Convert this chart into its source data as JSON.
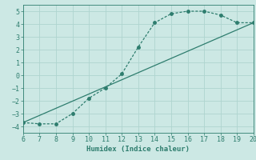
{
  "curve_x": [
    6,
    7,
    8,
    9,
    10,
    11,
    12,
    13,
    14,
    15,
    16,
    17,
    18,
    19,
    20
  ],
  "curve_y": [
    -3.7,
    -3.8,
    -3.8,
    -3.0,
    -1.8,
    -1.0,
    0.1,
    2.2,
    4.1,
    4.8,
    5.0,
    5.0,
    4.7,
    4.1,
    4.1
  ],
  "line_x": [
    6,
    20
  ],
  "line_y": [
    -3.7,
    4.1
  ],
  "color": "#2e7d6e",
  "bg_color": "#cce8e4",
  "grid_color": "#afd4cf",
  "xlabel": "Humidex (Indice chaleur)",
  "xlim": [
    6,
    20
  ],
  "ylim": [
    -4.5,
    5.5
  ],
  "xticks": [
    6,
    7,
    8,
    9,
    10,
    11,
    12,
    13,
    14,
    15,
    16,
    17,
    18,
    19,
    20
  ],
  "yticks": [
    -4,
    -3,
    -2,
    -1,
    0,
    1,
    2,
    3,
    4,
    5
  ],
  "label_fontsize": 6.5,
  "tick_fontsize": 6,
  "line_width": 0.9,
  "marker_size": 2.5
}
